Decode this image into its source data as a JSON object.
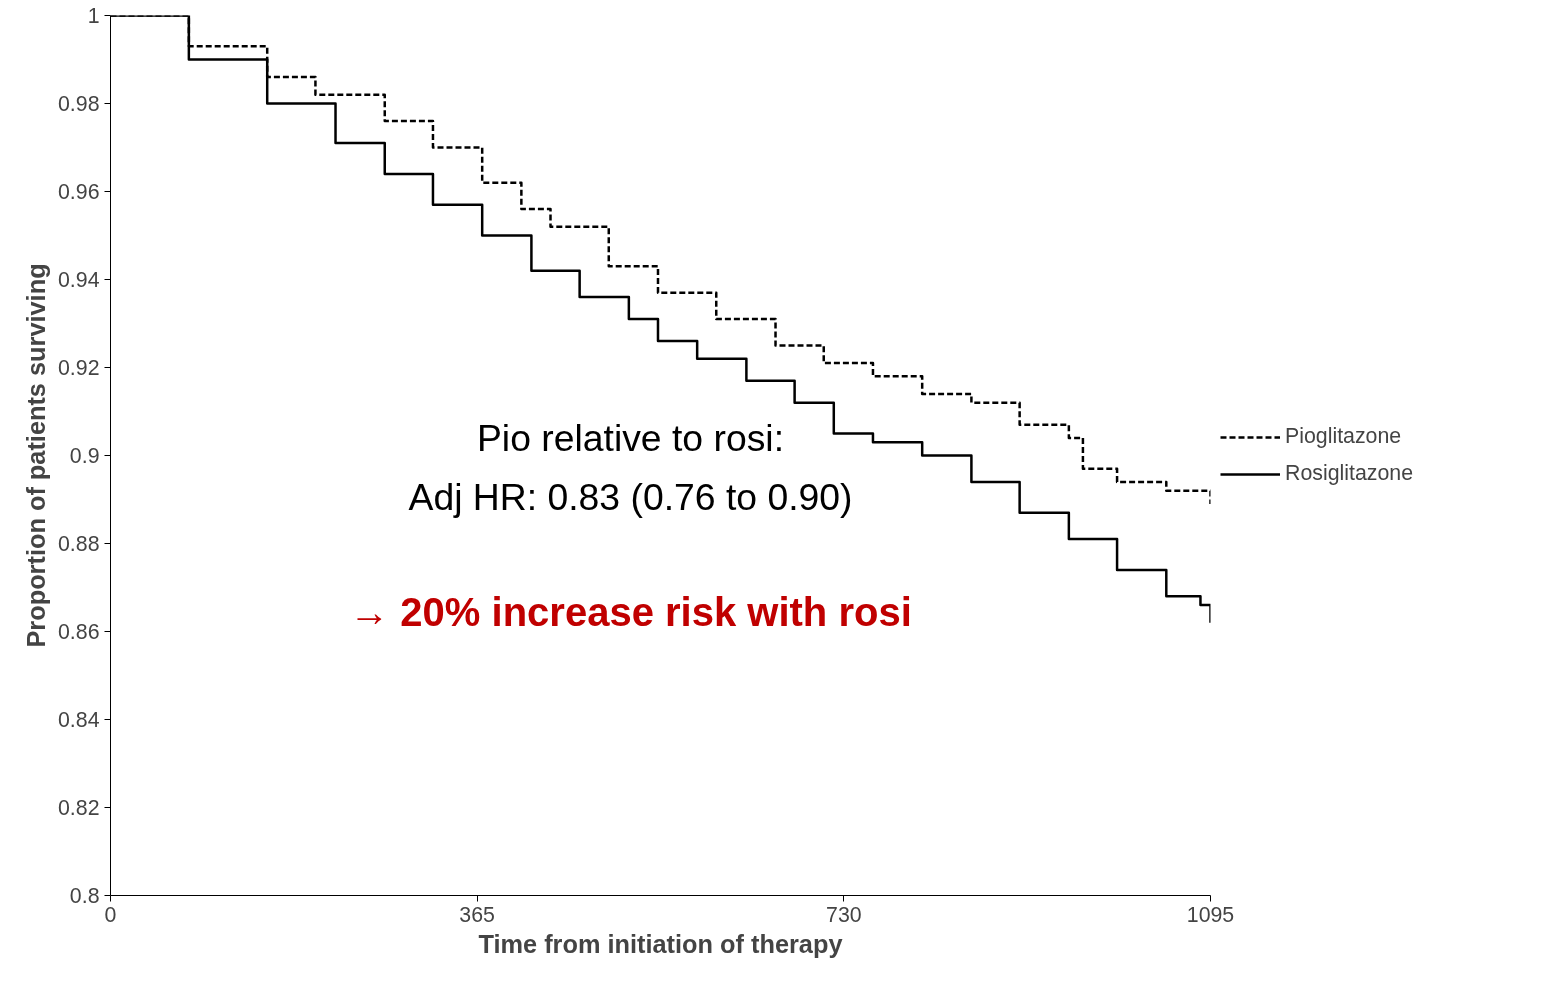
{
  "chart_data": {
    "type": "step",
    "xlabel": "Time from initiation of therapy",
    "ylabel": "Proportion of patients surviving",
    "x": [
      0,
      78,
      156,
      204,
      273,
      321,
      370,
      409,
      438,
      496,
      545,
      603,
      662,
      710,
      759,
      808,
      857,
      905,
      954,
      968,
      1002,
      1051,
      1095
    ],
    "series": [
      {
        "name": "Pioglitazone",
        "color": "#000000",
        "line_style": "dashed",
        "values": [
          1.0,
          0.993,
          0.986,
          0.982,
          0.976,
          0.97,
          0.962,
          0.956,
          0.952,
          0.943,
          0.937,
          0.931,
          0.925,
          0.921,
          0.918,
          0.914,
          0.912,
          0.907,
          0.904,
          0.897,
          0.894,
          0.892,
          0.889
        ]
      },
      {
        "name": "Rosiglitazone",
        "color": "#000000",
        "line_style": "solid",
        "x": [
          0,
          78,
          156,
          224,
          273,
          321,
          370,
          419,
          467,
          516,
          545,
          584,
          633,
          681,
          720,
          759,
          808,
          857,
          905,
          954,
          1002,
          1051,
          1085,
          1095
        ],
        "values": [
          1.0,
          0.99,
          0.98,
          0.971,
          0.964,
          0.957,
          0.95,
          0.942,
          0.936,
          0.931,
          0.926,
          0.922,
          0.917,
          0.912,
          0.905,
          0.903,
          0.9,
          0.894,
          0.887,
          0.881,
          0.874,
          0.868,
          0.866,
          0.862
        ]
      }
    ],
    "xlim": [
      0,
      1095
    ],
    "xticks": [
      0,
      365,
      730,
      1095
    ],
    "ylim": [
      0.8,
      1
    ],
    "yticks": [
      0.8,
      0.82,
      0.84,
      0.86,
      0.88,
      0.9,
      0.92,
      0.94,
      0.96,
      0.98,
      1
    ],
    "grid": false,
    "legend": "right",
    "marker": "none",
    "annotations": [
      "Pio relative to rosi:",
      "Adj HR: 0.83 (0.76 to 0.90)",
      "→ 20% increase risk with rosi"
    ]
  }
}
